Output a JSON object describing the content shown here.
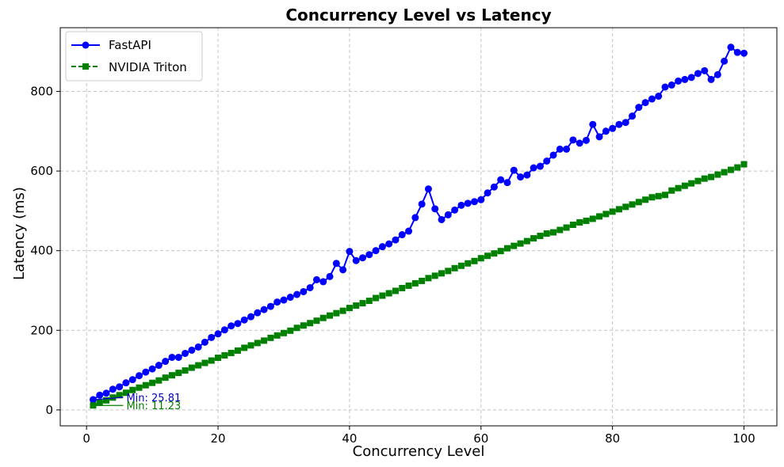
{
  "chart_data": {
    "type": "line",
    "title": "Concurrency Level vs Latency",
    "xlabel": "Concurrency Level",
    "ylabel": "Latency (ms)",
    "xlim": [
      -4,
      105
    ],
    "ylim": [
      -40,
      960
    ],
    "xticks": [
      0,
      20,
      40,
      60,
      80,
      100
    ],
    "yticks": [
      0,
      200,
      400,
      600,
      800
    ],
    "grid": true,
    "legend_position": "upper left",
    "series": [
      {
        "name": "FastAPI",
        "color": "#0000ff",
        "marker": "circle",
        "line_style": "solid",
        "x": [
          1,
          2,
          3,
          4,
          5,
          6,
          7,
          8,
          9,
          10,
          11,
          12,
          13,
          14,
          15,
          16,
          17,
          18,
          19,
          20,
          21,
          22,
          23,
          24,
          25,
          26,
          27,
          28,
          29,
          30,
          31,
          32,
          33,
          34,
          35,
          36,
          37,
          38,
          39,
          40,
          41,
          42,
          43,
          44,
          45,
          46,
          47,
          48,
          49,
          50,
          51,
          52,
          53,
          54,
          55,
          56,
          57,
          58,
          59,
          60,
          61,
          62,
          63,
          64,
          65,
          66,
          67,
          68,
          69,
          70,
          71,
          72,
          73,
          74,
          75,
          76,
          77,
          78,
          79,
          80,
          81,
          82,
          83,
          84,
          85,
          86,
          87,
          88,
          89,
          90,
          91,
          92,
          93,
          94,
          95,
          96,
          97,
          98,
          99,
          100
        ],
        "y": [
          25.81,
          37,
          42,
          52,
          58,
          68,
          76,
          86,
          95,
          103,
          112,
          122,
          132,
          132,
          142,
          150,
          158,
          170,
          182,
          191,
          201,
          211,
          217,
          226,
          234,
          244,
          252,
          260,
          271,
          276,
          283,
          290,
          297,
          307,
          327,
          322,
          335,
          368,
          352,
          398,
          375,
          382,
          390,
          400,
          410,
          417,
          427,
          440,
          449,
          483,
          517,
          555,
          505,
          478,
          490,
          502,
          514,
          519,
          523,
          528,
          545,
          560,
          578,
          571,
          602,
          585,
          590,
          608,
          612,
          625,
          640,
          655,
          655,
          678,
          670,
          677,
          717,
          686,
          700,
          707,
          717,
          722,
          738,
          760,
          772,
          781,
          788,
          811,
          816,
          826,
          830,
          835,
          845,
          852,
          830,
          842,
          876,
          911,
          898,
          896
        ]
      },
      {
        "name": "NVIDIA Triton",
        "color": "#008000",
        "marker": "square",
        "line_style": "dashed",
        "x": [
          1,
          2,
          3,
          4,
          5,
          6,
          7,
          8,
          9,
          10,
          11,
          12,
          13,
          14,
          15,
          16,
          17,
          18,
          19,
          20,
          21,
          22,
          23,
          24,
          25,
          26,
          27,
          28,
          29,
          30,
          31,
          32,
          33,
          34,
          35,
          36,
          37,
          38,
          39,
          40,
          41,
          42,
          43,
          44,
          45,
          46,
          47,
          48,
          49,
          50,
          51,
          52,
          53,
          54,
          55,
          56,
          57,
          58,
          59,
          60,
          61,
          62,
          63,
          64,
          65,
          66,
          67,
          68,
          69,
          70,
          71,
          72,
          73,
          74,
          75,
          76,
          77,
          78,
          79,
          80,
          81,
          82,
          83,
          84,
          85,
          86,
          87,
          88,
          89,
          90,
          91,
          92,
          93,
          94,
          95,
          96,
          97,
          98,
          99,
          100
        ],
        "y": [
          11.23,
          18,
          24,
          31,
          37,
          43,
          50,
          56,
          62,
          68,
          74,
          81,
          87,
          93,
          99,
          106,
          112,
          118,
          124,
          131,
          137,
          143,
          149,
          156,
          162,
          168,
          174,
          181,
          187,
          193,
          199,
          206,
          212,
          218,
          224,
          231,
          237,
          243,
          249,
          256,
          262,
          268,
          274,
          281,
          287,
          293,
          299,
          306,
          312,
          318,
          324,
          331,
          337,
          343,
          349,
          356,
          362,
          368,
          374,
          381,
          387,
          393,
          399,
          406,
          412,
          418,
          424,
          431,
          437,
          443,
          446,
          452,
          458,
          465,
          471,
          475,
          480,
          486,
          492,
          498,
          504,
          510,
          516,
          522,
          528,
          534,
          537,
          540,
          551,
          557,
          563,
          569,
          575,
          581,
          585,
          591,
          597,
          603,
          609,
          617
        ]
      }
    ],
    "annotations": [
      {
        "text": "Min: 25.81",
        "x": 1,
        "y": 25.81,
        "color": "#0000cc"
      },
      {
        "text": "Min: 11.23",
        "x": 1,
        "y": 11.23,
        "color": "#008000"
      }
    ]
  }
}
